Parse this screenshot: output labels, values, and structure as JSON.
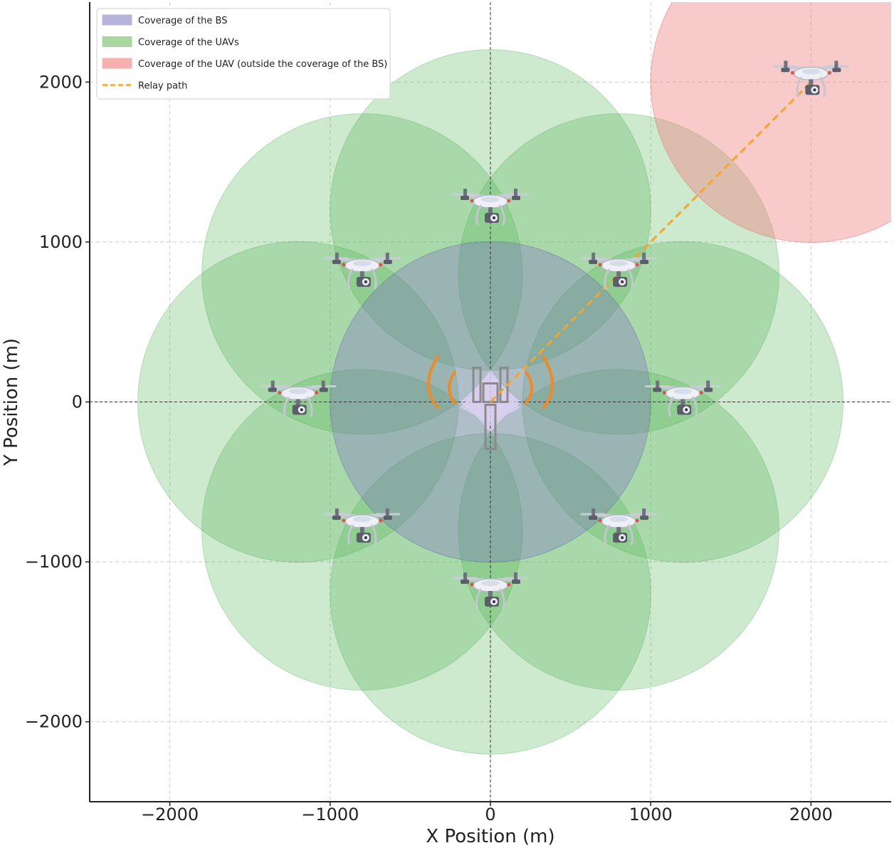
{
  "chart_data": {
    "type": "scatter",
    "title": "",
    "xlabel": "X Position (m)",
    "ylabel": "Y Position (m)",
    "xlim": [
      -2500,
      2500
    ],
    "ylim": [
      -2500,
      2500
    ],
    "xticks": [
      -2000,
      -1000,
      0,
      1000,
      2000
    ],
    "yticks": [
      -2000,
      -1000,
      0,
      1000,
      2000
    ],
    "xtick_labels": [
      "−2000",
      "−1000",
      "0",
      "1000",
      "2000"
    ],
    "ytick_labels": [
      "−2000",
      "−1000",
      "0",
      "1000",
      "2000"
    ],
    "grid": true,
    "legend_position": "top-left",
    "base_station": {
      "x": 0,
      "y": 0,
      "coverage_radius": 1000,
      "color": "#7b6fc4"
    },
    "uavs": [
      {
        "x": 0,
        "y": 1200
      },
      {
        "x": 800,
        "y": 800
      },
      {
        "x": 1200,
        "y": 0
      },
      {
        "x": 800,
        "y": -800
      },
      {
        "x": 0,
        "y": -1200
      },
      {
        "x": -800,
        "y": -800
      },
      {
        "x": -1200,
        "y": 0
      },
      {
        "x": -800,
        "y": 800
      }
    ],
    "uav_coverage_radius": 1000,
    "uav_color": "#4caf50",
    "outside_uav": {
      "x": 2000,
      "y": 2000,
      "coverage_radius": 1000,
      "color": "#f08080"
    },
    "relay_path": {
      "points": [
        [
          0,
          0
        ],
        [
          800,
          800
        ],
        [
          2000,
          2000
        ]
      ],
      "color": "#f5a623"
    },
    "legend": [
      {
        "label": "Coverage of the BS",
        "type": "patch",
        "color": "#b7b2dc"
      },
      {
        "label": "Coverage of the UAVs",
        "type": "patch",
        "color": "#a8d8a0"
      },
      {
        "label": "Coverage of the UAV (outside the coverage of the BS)",
        "type": "patch",
        "color": "#f7b0b0"
      },
      {
        "label": "Relay path",
        "type": "line",
        "color": "#f5a623"
      }
    ]
  }
}
